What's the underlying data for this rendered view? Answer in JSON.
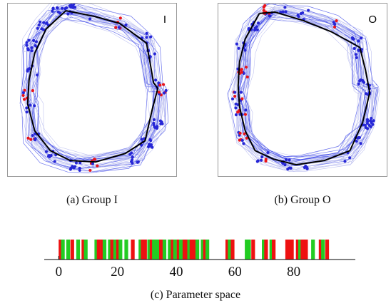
{
  "panels": [
    {
      "letter": "I",
      "caption": "(a) Group I"
    },
    {
      "letter": "O",
      "caption": "(b) Group O"
    }
  ],
  "colors": {
    "trace": "#3b45e8",
    "trace_light": "#b9bdf0",
    "mean_line": "#000000",
    "in_point": "#2626d6",
    "out_point": "#e8141a",
    "param_green": "#22cc22",
    "param_red": "#ee1111"
  },
  "chart_data": {
    "type": "bar",
    "caption": "(c) Parameter space",
    "xlabel": "",
    "ylabel": "",
    "xlim": [
      -3,
      101
    ],
    "ticks": [
      0,
      20,
      40,
      60,
      80
    ],
    "tick_labels": [
      "0",
      "20",
      "40",
      "60",
      "80"
    ],
    "bars": [
      {
        "x": 0.6,
        "color": "red"
      },
      {
        "x": 1.4,
        "color": "green"
      },
      {
        "x": 3.2,
        "color": "green"
      },
      {
        "x": 4.6,
        "color": "red"
      },
      {
        "x": 6.6,
        "color": "green"
      },
      {
        "x": 8.4,
        "color": "red"
      },
      {
        "x": 9.2,
        "color": "green"
      },
      {
        "x": 12.8,
        "color": "green"
      },
      {
        "x": 13.6,
        "color": "red"
      },
      {
        "x": 14.8,
        "color": "red"
      },
      {
        "x": 15.6,
        "color": "green"
      },
      {
        "x": 17.4,
        "color": "green"
      },
      {
        "x": 18.2,
        "color": "red"
      },
      {
        "x": 19.2,
        "color": "green"
      },
      {
        "x": 20.2,
        "color": "red"
      },
      {
        "x": 21.0,
        "color": "green"
      },
      {
        "x": 23.0,
        "color": "green"
      },
      {
        "x": 25.2,
        "color": "red"
      },
      {
        "x": 27.8,
        "color": "green"
      },
      {
        "x": 28.6,
        "color": "red"
      },
      {
        "x": 29.4,
        "color": "red"
      },
      {
        "x": 30.8,
        "color": "green"
      },
      {
        "x": 31.6,
        "color": "red"
      },
      {
        "x": 32.4,
        "color": "green"
      },
      {
        "x": 33.6,
        "color": "green"
      },
      {
        "x": 34.8,
        "color": "red"
      },
      {
        "x": 36.0,
        "color": "green"
      },
      {
        "x": 37.8,
        "color": "green"
      },
      {
        "x": 38.8,
        "color": "red"
      },
      {
        "x": 39.6,
        "color": "green"
      },
      {
        "x": 40.8,
        "color": "red"
      },
      {
        "x": 41.6,
        "color": "green"
      },
      {
        "x": 42.8,
        "color": "red"
      },
      {
        "x": 43.6,
        "color": "red"
      },
      {
        "x": 44.4,
        "color": "green"
      },
      {
        "x": 45.2,
        "color": "red"
      },
      {
        "x": 46.4,
        "color": "red"
      },
      {
        "x": 47.2,
        "color": "green"
      },
      {
        "x": 49.0,
        "color": "green"
      },
      {
        "x": 49.8,
        "color": "red"
      },
      {
        "x": 50.6,
        "color": "green"
      },
      {
        "x": 57.4,
        "color": "red"
      },
      {
        "x": 58.2,
        "color": "green"
      },
      {
        "x": 59.2,
        "color": "red"
      },
      {
        "x": 64.0,
        "color": "green"
      },
      {
        "x": 64.8,
        "color": "green"
      },
      {
        "x": 66.2,
        "color": "red"
      },
      {
        "x": 69.8,
        "color": "green"
      },
      {
        "x": 70.6,
        "color": "red"
      },
      {
        "x": 72.4,
        "color": "green"
      },
      {
        "x": 73.2,
        "color": "red"
      },
      {
        "x": 77.8,
        "color": "red"
      },
      {
        "x": 78.6,
        "color": "red"
      },
      {
        "x": 79.4,
        "color": "red"
      },
      {
        "x": 81.4,
        "color": "red"
      },
      {
        "x": 82.2,
        "color": "green"
      },
      {
        "x": 83.0,
        "color": "red"
      },
      {
        "x": 84.2,
        "color": "red"
      },
      {
        "x": 86.6,
        "color": "green"
      },
      {
        "x": 89.2,
        "color": "red"
      },
      {
        "x": 90.0,
        "color": "green"
      },
      {
        "x": 91.4,
        "color": "red"
      }
    ]
  }
}
